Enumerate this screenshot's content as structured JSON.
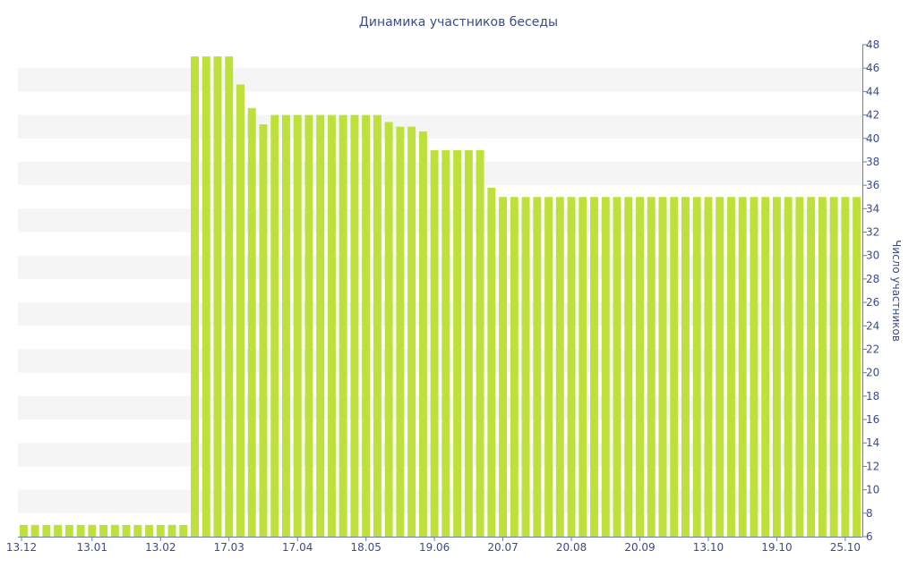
{
  "colors": {
    "bar": "#bde03a",
    "band": "#f5f5f5",
    "axis_text": "#3a4c8a",
    "title_text": "#3a4c8a",
    "axis_line": "#6b7bb0"
  },
  "chart_data": {
    "type": "bar",
    "title": "Динамика участников беседы",
    "xlabel": "",
    "ylabel": "Число участников",
    "ylim": [
      6,
      48
    ],
    "y_ticks": [
      6,
      8,
      10,
      12,
      14,
      16,
      18,
      20,
      22,
      24,
      26,
      28,
      30,
      32,
      34,
      36,
      38,
      40,
      42,
      44,
      46,
      48
    ],
    "y_axis_position": "right",
    "grid": "alternating-bands",
    "x_tick_labels": [
      "13.12",
      "13.01",
      "13.02",
      "17.03",
      "17.04",
      "18.05",
      "19.06",
      "20.07",
      "20.08",
      "20.09",
      "13.10",
      "19.10",
      "25.10"
    ],
    "x_tick_bar_index": [
      0,
      6,
      12,
      18,
      24,
      30,
      36,
      42,
      48,
      54,
      60,
      66,
      72
    ],
    "values": [
      7,
      7,
      7,
      7,
      7,
      7,
      7,
      7,
      7,
      7,
      7,
      7,
      7,
      7,
      7,
      47,
      47,
      47,
      47,
      44.6,
      42.6,
      41.2,
      42,
      42,
      42,
      42,
      42,
      42,
      42,
      42,
      42,
      42,
      41.4,
      41,
      41,
      40.6,
      39,
      39,
      39,
      39,
      39,
      35.8,
      35,
      35,
      35,
      35,
      35,
      35,
      35,
      35,
      35,
      35,
      35,
      35,
      35,
      35,
      35,
      35,
      35,
      35,
      35,
      35,
      35,
      35,
      35,
      35,
      35,
      35,
      35,
      35,
      35,
      35,
      35,
      35
    ]
  }
}
